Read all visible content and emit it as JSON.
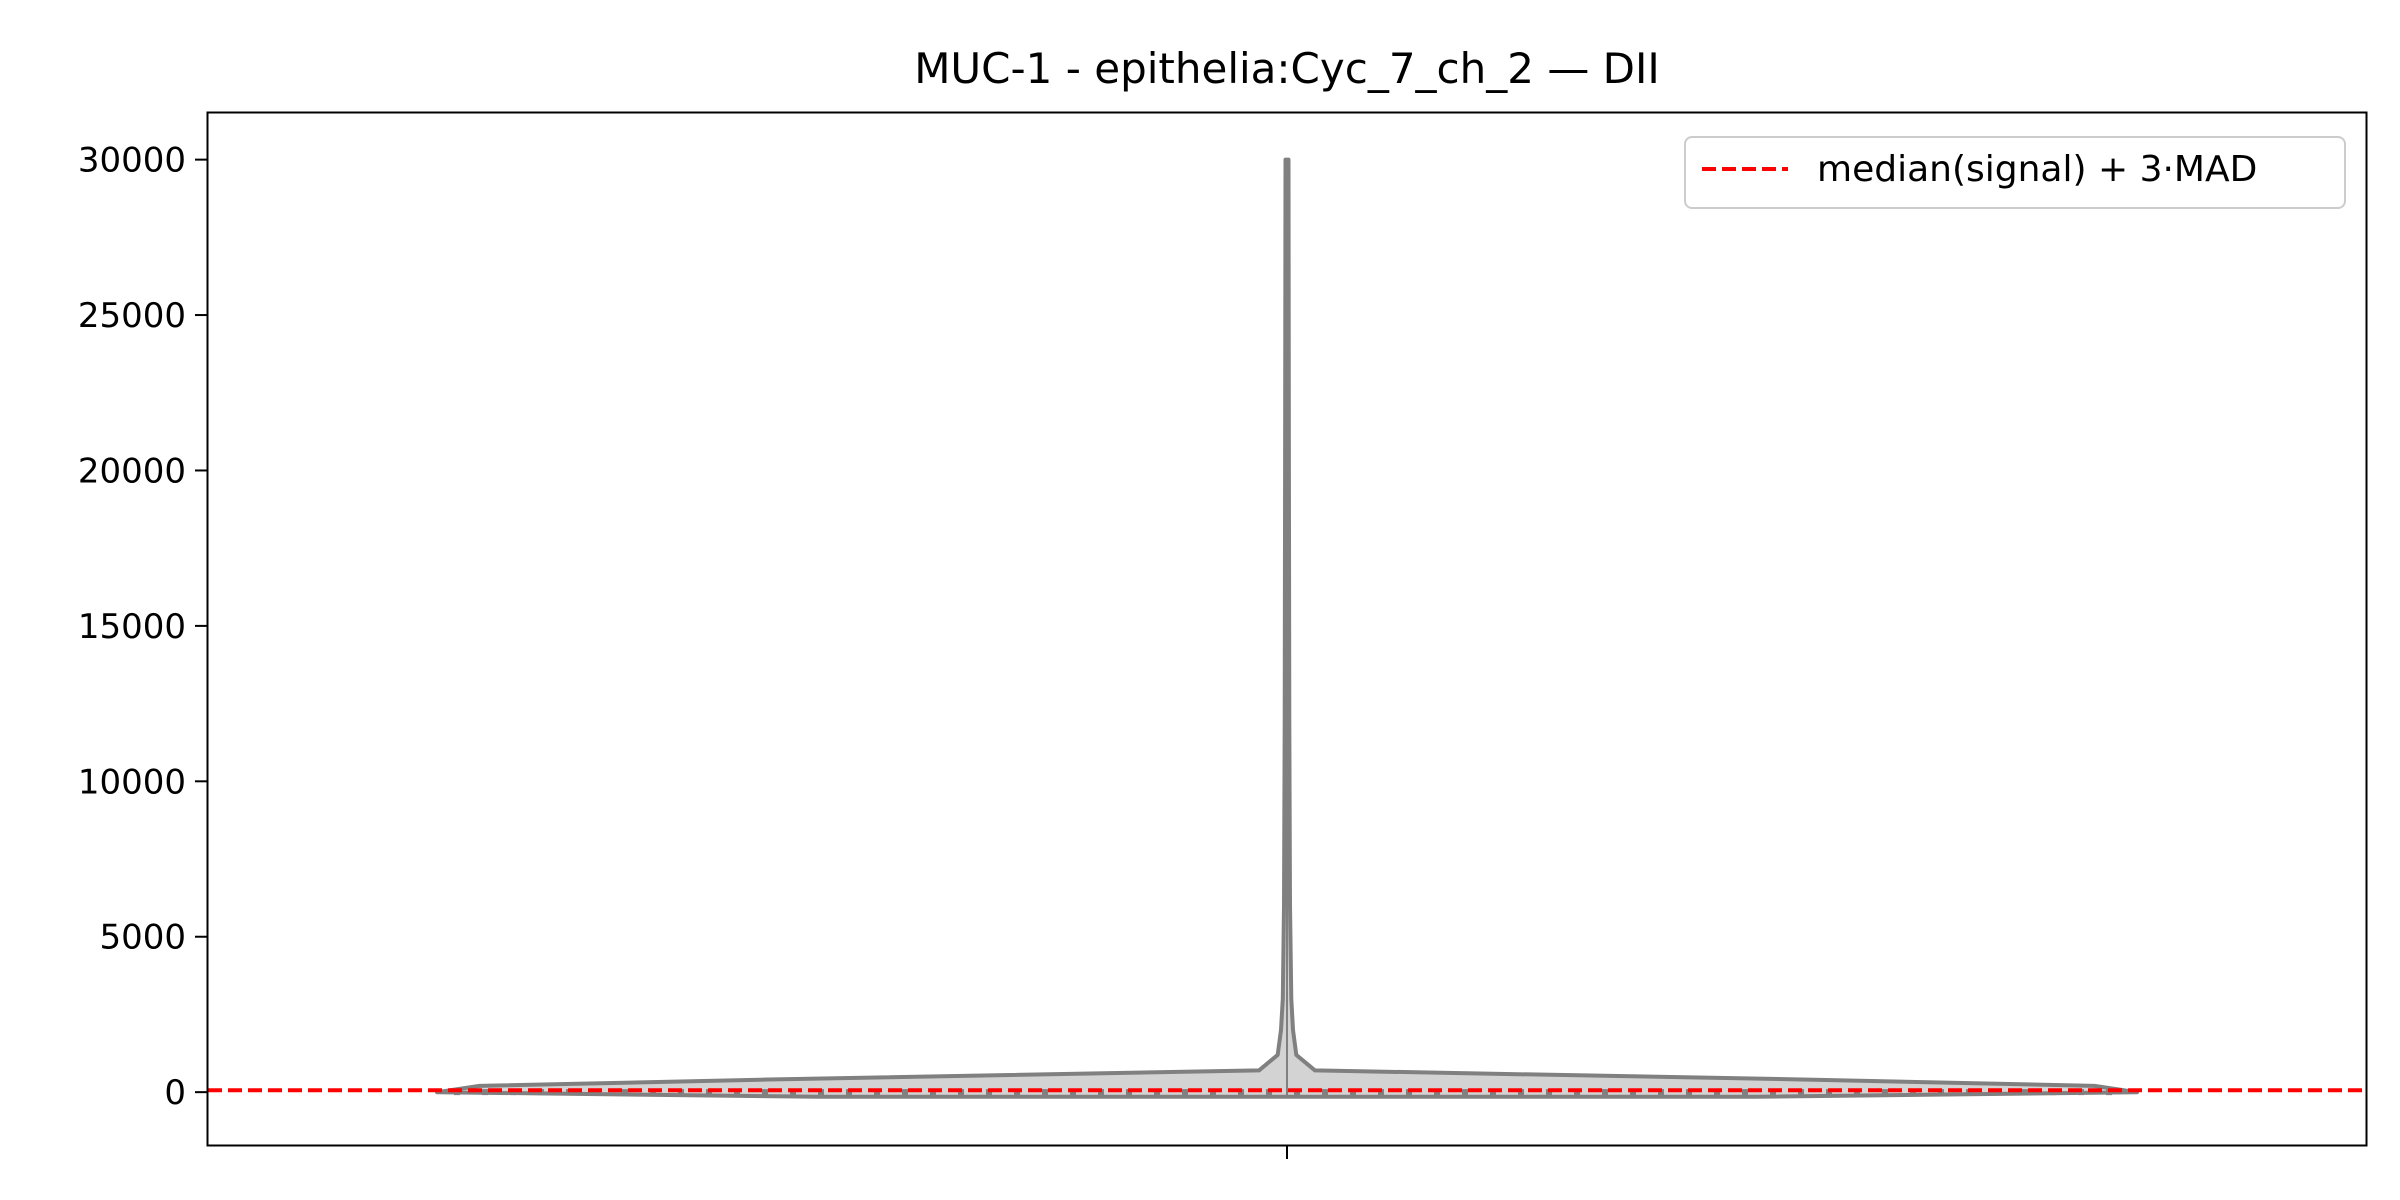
{
  "chart_data": {
    "type": "violin",
    "title": "MUC-1 - epithelia:Cyc_7_ch_2 — DII",
    "xlabel": "",
    "ylabel": "",
    "ylim": [
      -1700,
      31500
    ],
    "yticks": [
      0,
      5000,
      10000,
      15000,
      20000,
      25000,
      30000
    ],
    "ytick_labels": [
      "0",
      "5000",
      "10000",
      "15000",
      "20000",
      "25000",
      "30000"
    ],
    "grid": false,
    "legend": {
      "position": "top-right",
      "entries": [
        "median(signal) + 3·MAD"
      ]
    },
    "violin": {
      "min": -150,
      "max": 30000,
      "median": 0,
      "fill_color": "#d3d3d3",
      "edge_color": "#808080",
      "density_profile": [
        {
          "y": -150,
          "w": 0.55
        },
        {
          "y": 0,
          "w": 1.0
        },
        {
          "y": 200,
          "w": 0.95
        },
        {
          "y": 400,
          "w": 0.62
        },
        {
          "y": 700,
          "w": 0.033
        },
        {
          "y": 1200,
          "w": 0.011
        },
        {
          "y": 2000,
          "w": 0.007
        },
        {
          "y": 3000,
          "w": 0.005
        },
        {
          "y": 6000,
          "w": 0.0035
        },
        {
          "y": 12000,
          "w": 0.0027
        },
        {
          "y": 20000,
          "w": 0.0022
        },
        {
          "y": 30000,
          "w": 0.0018
        }
      ]
    },
    "threshold": {
      "label": "median(signal) + 3·MAD",
      "value": 60,
      "color": "#ff0000",
      "style": "dashed"
    }
  }
}
